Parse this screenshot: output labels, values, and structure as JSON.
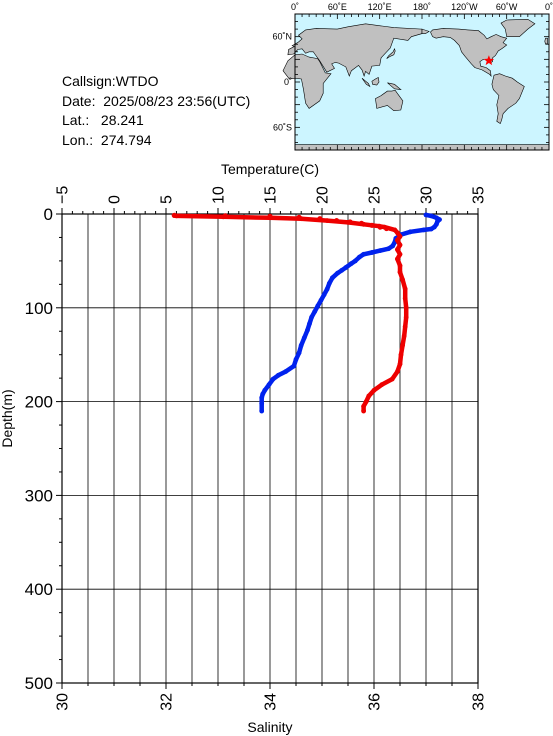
{
  "header": {
    "callsign_label": "Callsign:",
    "callsign": "WTDO",
    "date_label": "Date:",
    "date": "2025/08/23 23:56(UTC)",
    "lat_label": "Lat.:",
    "lat": "28.241",
    "lon_label": "Lon.:",
    "lon": "274.794"
  },
  "map": {
    "lon_ticks": [
      "0˚",
      "60˚E",
      "120˚E",
      "180˚",
      "120˚W",
      "60˚W",
      "0˚"
    ],
    "lat_ticks": [
      "60˚N",
      "0˚",
      "60˚S"
    ],
    "station": {
      "lon": 274.794,
      "lat": 28.241
    },
    "colors": {
      "ocean": "#ccf5ff",
      "land": "#c0c0c0",
      "marker": "#ff0000"
    }
  },
  "chart_data": {
    "type": "line",
    "ylabel": "Depth(m)",
    "ylim": [
      500,
      0
    ],
    "yticks": [
      "0",
      "100",
      "200",
      "300",
      "400",
      "500"
    ],
    "top_axis": {
      "label": "Temperature(C)",
      "range": [
        -5,
        35
      ],
      "ticks": [
        "−5",
        "0",
        "5",
        "10",
        "15",
        "20",
        "25",
        "30",
        "35"
      ]
    },
    "bottom_axis": {
      "label": "Salinity",
      "range": [
        30,
        38
      ],
      "ticks": [
        "30",
        "32",
        "34",
        "36",
        "38"
      ]
    },
    "grid": true,
    "series": [
      {
        "axis": "top",
        "color": "#0022ee",
        "points": [
          [
            30.0,
            1
          ],
          [
            30.5,
            2
          ],
          [
            31.0,
            4
          ],
          [
            31.3,
            6
          ],
          [
            31.1,
            8
          ],
          [
            31.0,
            11
          ],
          [
            30.8,
            14
          ],
          [
            30.5,
            16
          ],
          [
            29.8,
            17
          ],
          [
            28.5,
            19
          ],
          [
            27.6,
            22
          ],
          [
            27.1,
            26
          ],
          [
            27.0,
            30
          ],
          [
            26.8,
            34
          ],
          [
            26.4,
            37
          ],
          [
            25.6,
            39
          ],
          [
            24.8,
            41
          ],
          [
            24.0,
            43
          ],
          [
            23.6,
            46
          ],
          [
            23.2,
            50
          ],
          [
            22.8,
            53
          ],
          [
            22.3,
            57
          ],
          [
            21.9,
            60
          ],
          [
            21.5,
            63
          ],
          [
            21.0,
            68
          ],
          [
            20.7,
            74
          ],
          [
            20.5,
            80
          ],
          [
            20.2,
            86
          ],
          [
            19.9,
            92
          ],
          [
            19.6,
            98
          ],
          [
            19.3,
            104
          ],
          [
            19.0,
            110
          ],
          [
            18.8,
            117
          ],
          [
            18.6,
            124
          ],
          [
            18.3,
            132
          ],
          [
            18.0,
            140
          ],
          [
            17.8,
            148
          ],
          [
            17.5,
            155
          ],
          [
            17.3,
            162
          ],
          [
            16.5,
            168
          ],
          [
            15.8,
            172
          ],
          [
            15.3,
            176
          ],
          [
            14.9,
            182
          ],
          [
            14.5,
            188
          ],
          [
            14.3,
            192
          ],
          [
            14.2,
            196
          ],
          [
            14.2,
            202
          ],
          [
            14.2,
            210
          ]
        ]
      },
      {
        "axis": "bottom",
        "color": "#ee0000",
        "points": [
          [
            32.2,
            2
          ],
          [
            33.1,
            3
          ],
          [
            34.0,
            4
          ],
          [
            34.6,
            5
          ],
          [
            35.1,
            7
          ],
          [
            35.5,
            9
          ],
          [
            35.8,
            11
          ],
          [
            36.1,
            13
          ],
          [
            36.2,
            14
          ],
          [
            36.4,
            17
          ],
          [
            36.45,
            20
          ],
          [
            36.5,
            24
          ],
          [
            36.45,
            28
          ],
          [
            36.5,
            33
          ],
          [
            36.45,
            38
          ],
          [
            36.5,
            43
          ],
          [
            36.45,
            48
          ],
          [
            36.5,
            55
          ],
          [
            36.5,
            62
          ],
          [
            36.55,
            70
          ],
          [
            36.6,
            80
          ],
          [
            36.6,
            90
          ],
          [
            36.62,
            100
          ],
          [
            36.62,
            110
          ],
          [
            36.6,
            120
          ],
          [
            36.58,
            130
          ],
          [
            36.55,
            140
          ],
          [
            36.52,
            150
          ],
          [
            36.5,
            160
          ],
          [
            36.45,
            168
          ],
          [
            36.35,
            176
          ],
          [
            36.15,
            182
          ],
          [
            36.0,
            188
          ],
          [
            35.9,
            194
          ],
          [
            35.85,
            200
          ],
          [
            35.8,
            205
          ],
          [
            35.8,
            210
          ]
        ]
      },
      {
        "axis": "top",
        "color": "#ee0000",
        "points": [
          [
            5.8,
            1.5
          ],
          [
            10.7,
            2
          ],
          [
            15.0,
            2.5
          ],
          [
            17.8,
            3.5
          ],
          [
            19.8,
            5
          ],
          [
            21.4,
            7
          ],
          [
            22.7,
            8.5
          ],
          [
            23.8,
            10
          ],
          [
            24.8,
            12
          ],
          [
            25.6,
            14
          ],
          [
            26.2,
            15.5
          ]
        ]
      }
    ]
  }
}
